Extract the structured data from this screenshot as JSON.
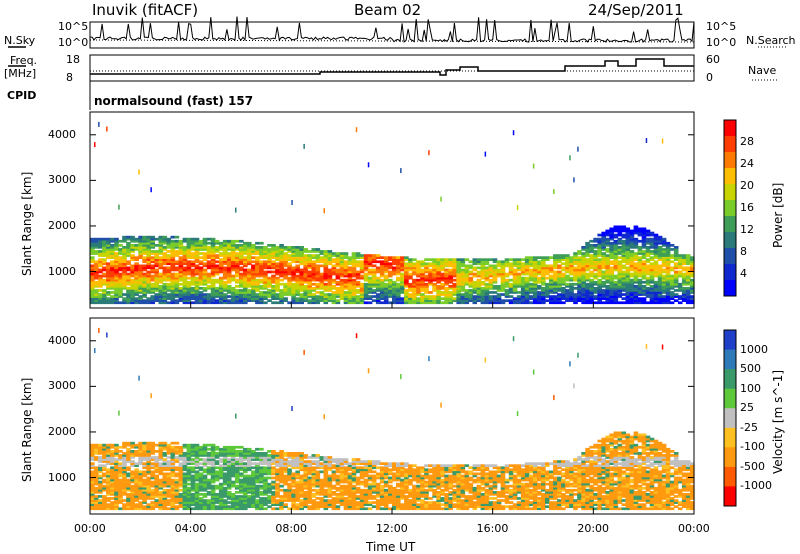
{
  "header": {
    "station": "Inuvik (fitACF)",
    "beam": "Beam 02",
    "date": "24/Sep/2011"
  },
  "top_panels": {
    "nsky_label": "N.Sky",
    "nsearch_label": "N.Search",
    "nsky_ticks": [
      "10^5",
      "10^0"
    ],
    "nsearch_ticks": [
      "10^5",
      "10^0"
    ],
    "freq_label": "Freq.",
    "freq_unit": "[MHz]",
    "freq_ticks": [
      "18",
      "8"
    ],
    "nave_label": "Nave",
    "nave_ticks": [
      "60",
      "0"
    ],
    "cpid_label": "CPID",
    "cpid_text": "normalsound (fast) 157"
  },
  "chart_data": [
    {
      "type": "heatmap",
      "ylabel": "Slant Range [km]",
      "xlabel": "",
      "ylim": [
        200,
        4500
      ],
      "yticks": [
        "1000",
        "2000",
        "3000",
        "4000"
      ],
      "xticks": [
        "00:00",
        "04:00",
        "08:00",
        "12:00",
        "16:00",
        "20:00",
        "00:00"
      ],
      "colorbar": {
        "label": "Power [dB]",
        "ticks": [
          "28",
          "24",
          "20",
          "16",
          "12",
          "8",
          "4"
        ],
        "colors": [
          "#ff0000",
          "#ff3d00",
          "#ff7a00",
          "#ffbe00",
          "#c8d400",
          "#7acc2a",
          "#3e9e58",
          "#2b7a7a",
          "#1f4fa8",
          "#0f28d0",
          "#0000ff"
        ]
      }
    },
    {
      "type": "heatmap",
      "ylabel": "Slant Range [km]",
      "xlabel": "Time UT",
      "ylim": [
        200,
        4500
      ],
      "yticks": [
        "1000",
        "2000",
        "3000",
        "4000"
      ],
      "xticks": [
        "00:00",
        "04:00",
        "08:00",
        "12:00",
        "16:00",
        "20:00",
        "00:00"
      ],
      "colorbar": {
        "label": "Velocity [m s^-1]",
        "ticks": [
          "1000",
          "500",
          "100",
          "25",
          "-25",
          "-100",
          "-500",
          "-1000"
        ],
        "colors": [
          "#1f3fc8",
          "#2e79b8",
          "#3a9a6a",
          "#5cc83a",
          "#c0c0c0",
          "#ffc020",
          "#ff9a10",
          "#ff5a00",
          "#ff0000"
        ]
      }
    }
  ]
}
